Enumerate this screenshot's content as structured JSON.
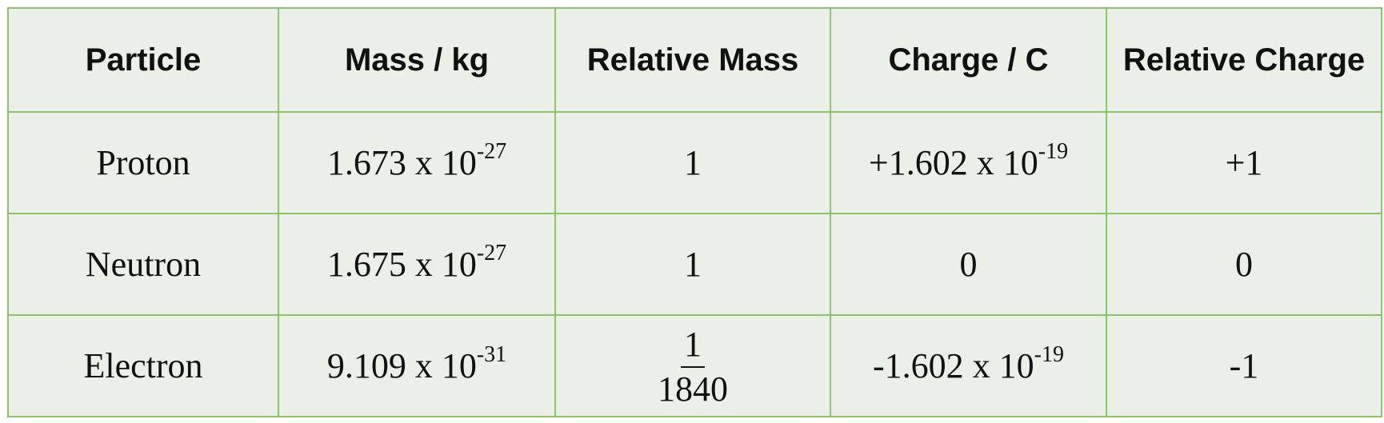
{
  "table": {
    "header": [
      "Particle",
      "Mass / kg",
      "Relative Mass",
      "Charge / C",
      "Relative Charge"
    ],
    "rows": [
      [
        "Proton",
        {
          "base": "1.673 x 10",
          "exp": "-27"
        },
        "1",
        {
          "base": "+1.602 x 10",
          "exp": "-19"
        },
        "+1"
      ],
      [
        "Neutron",
        {
          "base": "1.675 x 10",
          "exp": "-27"
        },
        "1",
        "0",
        "0"
      ],
      [
        "Electron",
        {
          "base": "9.109 x 10",
          "exp": "-31"
        },
        {
          "numerator": "1",
          "denominator": "1840"
        },
        {
          "base": "-1.602 x 10",
          "exp": "-19"
        },
        "-1"
      ]
    ]
  }
}
